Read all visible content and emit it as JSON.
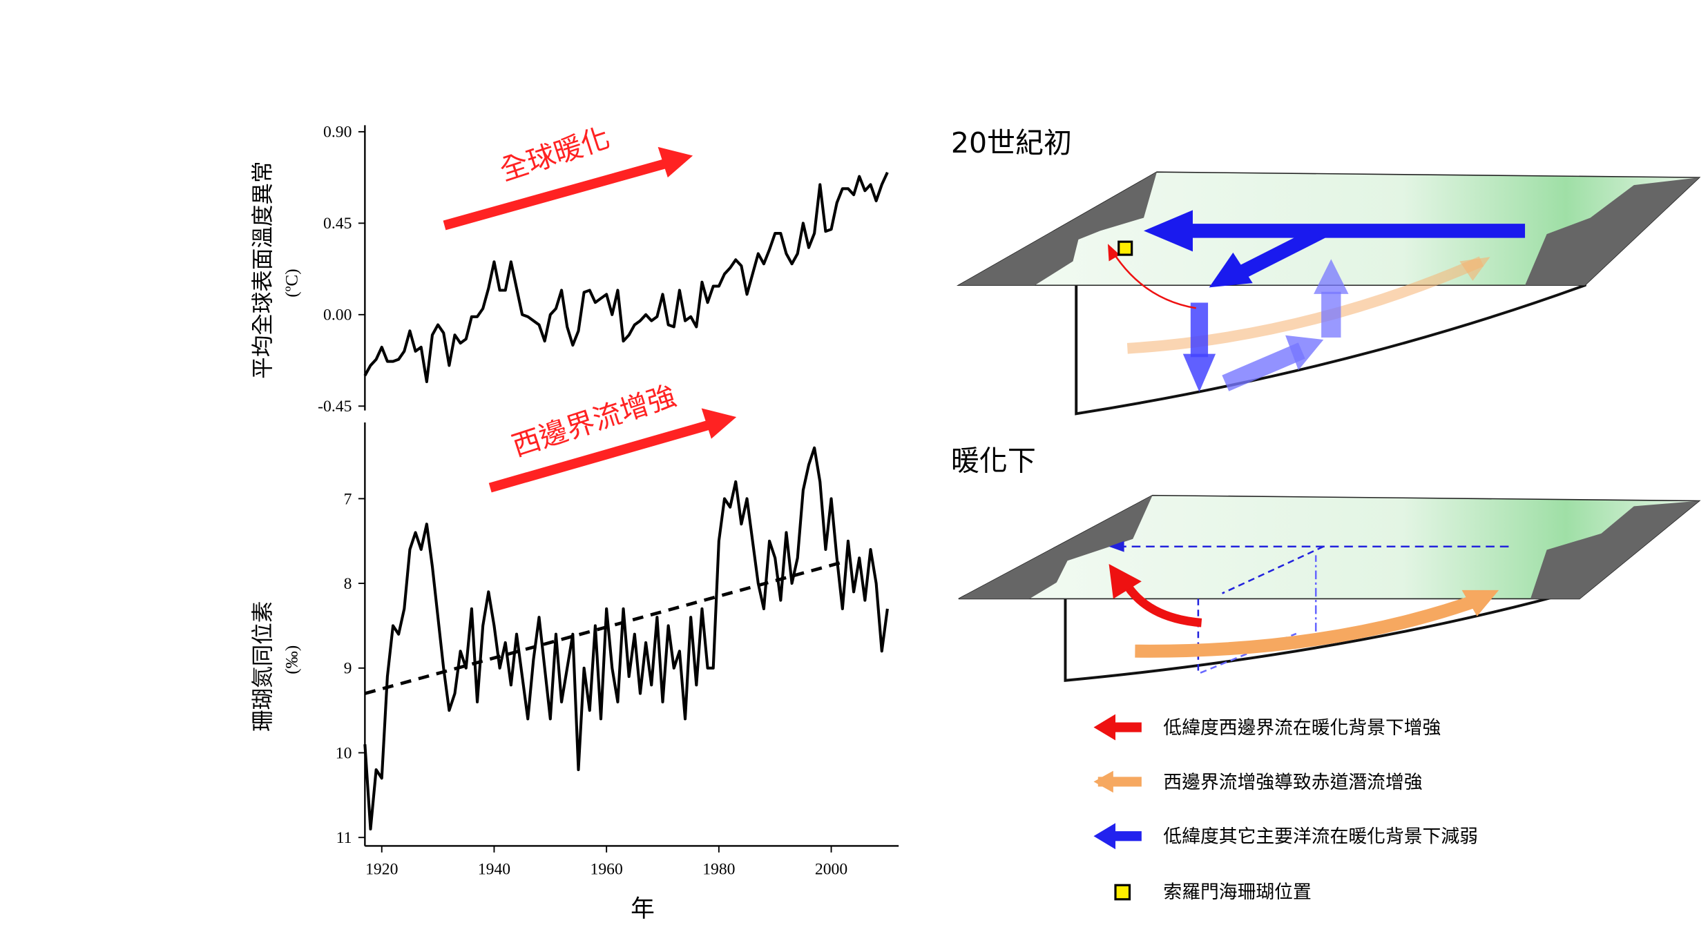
{
  "chart_data": [
    {
      "type": "line",
      "annotation": "全球暖化",
      "ylabel": "平均全球表面溫度異常",
      "ylabel_unit": "(ºC)",
      "xlim": [
        1917,
        2012
      ],
      "ylim": [
        -0.45,
        0.9
      ],
      "yticks": [
        {
          "value": 0.9,
          "label": "0.90"
        },
        {
          "value": 0.45,
          "label": "0.45"
        },
        {
          "value": 0,
          "label": "0.00"
        },
        {
          "value": -0.45,
          "label": "-0.45"
        }
      ],
      "series": [
        {
          "color": "#000000",
          "x": [
            1917,
            1918,
            1919,
            1920,
            1921,
            1922,
            1923,
            1924,
            1925,
            1926,
            1927,
            1928,
            1929,
            1930,
            1931,
            1932,
            1933,
            1934,
            1935,
            1936,
            1937,
            1938,
            1939,
            1940,
            1941,
            1942,
            1943,
            1944,
            1945,
            1946,
            1947,
            1948,
            1949,
            1950,
            1951,
            1952,
            1953,
            1954,
            1955,
            1956,
            1957,
            1958,
            1959,
            1960,
            1961,
            1962,
            1963,
            1964,
            1965,
            1966,
            1967,
            1968,
            1969,
            1970,
            1971,
            1972,
            1973,
            1974,
            1975,
            1976,
            1977,
            1978,
            1979,
            1980,
            1981,
            1982,
            1983,
            1984,
            1985,
            1986,
            1987,
            1988,
            1989,
            1990,
            1991,
            1992,
            1993,
            1994,
            1995,
            1996,
            1997,
            1998,
            1999,
            2000,
            2001,
            2002,
            2003,
            2004,
            2005,
            2006,
            2007,
            2008,
            2009,
            2010
          ],
          "values": [
            -0.3,
            -0.25,
            -0.22,
            -0.16,
            -0.23,
            -0.23,
            -0.22,
            -0.18,
            -0.08,
            -0.18,
            -0.16,
            -0.33,
            -0.1,
            -0.05,
            -0.09,
            -0.25,
            -0.1,
            -0.14,
            -0.12,
            -0.01,
            -0.01,
            0.03,
            0.13,
            0.26,
            0.12,
            0.12,
            0.26,
            0.13,
            0.0,
            -0.01,
            -0.03,
            -0.05,
            -0.13,
            0.0,
            0.03,
            0.12,
            -0.06,
            -0.15,
            -0.08,
            0.11,
            0.12,
            0.06,
            0.08,
            0.1,
            0.0,
            0.12,
            -0.13,
            -0.1,
            -0.05,
            -0.03,
            0.0,
            -0.03,
            -0.01,
            0.1,
            -0.05,
            -0.06,
            0.12,
            -0.03,
            -0.01,
            -0.06,
            0.16,
            0.06,
            0.14,
            0.14,
            0.2,
            0.23,
            0.27,
            0.24,
            0.1,
            0.2,
            0.3,
            0.25,
            0.32,
            0.4,
            0.4,
            0.3,
            0.25,
            0.3,
            0.45,
            0.33,
            0.4,
            0.64,
            0.41,
            0.42,
            0.55,
            0.62,
            0.62,
            0.59,
            0.68,
            0.61,
            0.64,
            0.56,
            0.64,
            0.7
          ]
        }
      ]
    },
    {
      "type": "line",
      "annotation": "西邊界流增強",
      "ylabel": "珊瑚氮同位素",
      "ylabel_unit": "(‰)",
      "xlabel": "年",
      "xlim": [
        1917,
        2012
      ],
      "xticks": [
        1920,
        1940,
        1960,
        1980,
        2000
      ],
      "ylim": [
        11.1,
        6.1
      ],
      "yticks": [
        7,
        8,
        9,
        10,
        11
      ],
      "series": [
        {
          "color": "#000000",
          "x": [
            1917,
            1918,
            1919,
            1920,
            1921,
            1922,
            1923,
            1924,
            1925,
            1926,
            1927,
            1928,
            1929,
            1930,
            1931,
            1932,
            1933,
            1934,
            1935,
            1936,
            1937,
            1938,
            1939,
            1940,
            1941,
            1942,
            1943,
            1944,
            1945,
            1946,
            1947,
            1948,
            1949,
            1950,
            1951,
            1952,
            1953,
            1954,
            1955,
            1956,
            1957,
            1958,
            1959,
            1960,
            1961,
            1962,
            1963,
            1964,
            1965,
            1966,
            1967,
            1968,
            1969,
            1970,
            1971,
            1972,
            1973,
            1974,
            1975,
            1976,
            1977,
            1978,
            1979,
            1980,
            1981,
            1982,
            1983,
            1984,
            1985,
            1986,
            1987,
            1988,
            1989,
            1990,
            1991,
            1992,
            1993,
            1994,
            1995,
            1996,
            1997,
            1998,
            1999,
            2000,
            2001,
            2002,
            2003,
            2004,
            2005,
            2006,
            2007,
            2008,
            2009,
            2010
          ],
          "values": [
            9.9,
            10.9,
            10.2,
            10.3,
            9.1,
            8.5,
            8.6,
            8.3,
            7.6,
            7.4,
            7.6,
            7.3,
            7.8,
            8.4,
            9.0,
            9.5,
            9.3,
            8.8,
            9.0,
            8.3,
            9.4,
            8.5,
            8.1,
            8.5,
            9.0,
            8.7,
            9.2,
            8.6,
            9.1,
            9.6,
            8.9,
            8.4,
            9.0,
            9.6,
            8.6,
            9.4,
            9.0,
            8.6,
            10.2,
            9.0,
            9.5,
            8.5,
            9.6,
            8.3,
            9.0,
            9.4,
            8.3,
            9.1,
            8.6,
            9.3,
            8.7,
            9.2,
            8.4,
            9.4,
            8.5,
            9.0,
            8.8,
            9.6,
            8.4,
            9.2,
            8.3,
            9.0,
            9.0,
            7.5,
            7.0,
            7.1,
            6.8,
            7.3,
            7.0,
            7.5,
            8.0,
            8.3,
            7.5,
            7.7,
            8.2,
            7.4,
            8.0,
            7.7,
            6.9,
            6.6,
            6.4,
            6.8,
            7.6,
            7.0,
            7.7,
            8.3,
            7.5,
            8.1,
            7.7,
            8.2,
            7.6,
            8.0,
            8.8,
            8.3
          ]
        },
        {
          "color": "#000000",
          "dashed": true,
          "x": [
            1917,
            2002
          ],
          "values": [
            9.3,
            7.75
          ]
        }
      ]
    }
  ],
  "diagram": {
    "panels": [
      {
        "title": "20世紀初"
      },
      {
        "title": "暖化下"
      }
    ],
    "legend": [
      {
        "label": "低緯度西邊界流在暖化背景下增強"
      },
      {
        "label": "西邊界流增強導致赤道潛流增強"
      },
      {
        "label": "低緯度其它主要洋流在暖化背景下減弱"
      },
      {
        "label": "索羅門海珊瑚位置"
      }
    ]
  }
}
